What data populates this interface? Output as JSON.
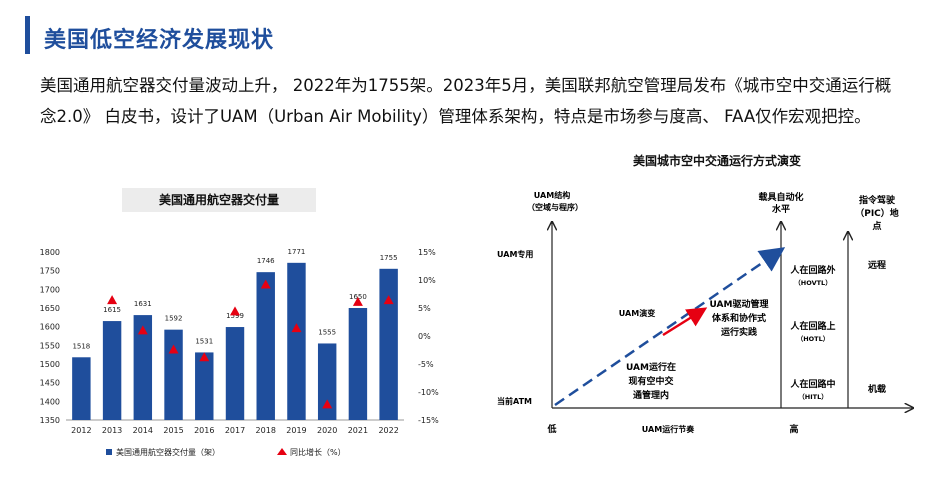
{
  "heading": {
    "title": "美国低空经济发展现状",
    "accent_color": "#1f4e9c"
  },
  "paragraph": "美国通用航空器交付量波动上升， 2022年为1755架。2023年5月，美国联邦航空管理局发布《城市空中交通运行概念2.0》 白皮书，设计了UAM（Urban Air Mobility）管理体系架构，特点是市场参与度高、 FAA仅作宏观把控。",
  "chart_data": [
    {
      "type": "bar",
      "title": "美国通用航空器交付量",
      "categories": [
        "2012",
        "2013",
        "2014",
        "2015",
        "2016",
        "2017",
        "2018",
        "2019",
        "2020",
        "2021",
        "2022"
      ],
      "series": [
        {
          "name": "美国通用航空器交付量（架）",
          "type": "bar",
          "axis": "left",
          "values": [
            1518,
            1615,
            1631,
            1592,
            1531,
            1599,
            1746,
            1771,
            1555,
            1650,
            1755
          ],
          "color": "#1f4e9c"
        },
        {
          "name": "同比增长（%）",
          "type": "marker",
          "axis": "right",
          "values": [
            null,
            6.4,
            1.0,
            -2.4,
            -3.8,
            4.4,
            9.2,
            1.4,
            -12.2,
            6.1,
            6.4
          ],
          "color": "#e60012"
        }
      ],
      "left_axis": {
        "ylim": [
          1350,
          1800
        ],
        "ticks": [
          "1350",
          "1400",
          "1450",
          "1500",
          "1550",
          "1600",
          "1650",
          "1700",
          "1750",
          "1800"
        ]
      },
      "right_axis": {
        "ylim": [
          -15,
          15
        ],
        "ticks": [
          "15%",
          "10%",
          "5%",
          "0%",
          "-5%",
          "-10%",
          "-15%"
        ]
      },
      "legend_position": "bottom"
    },
    {
      "type": "diagram",
      "title": "美国城市空中交通运行方式演变",
      "y_axis_label": [
        "UAM结构",
        "（空域与程序）"
      ],
      "y_levels": [
        "UAM专用",
        "当前ATM"
      ],
      "x_axis_label": "UAM运行节奏",
      "x_ends": [
        "低",
        "高"
      ],
      "auto_axis_label": [
        "载具自动化",
        "水平"
      ],
      "pic_axis_label": [
        "指令驾驶",
        "（PIC）地",
        "点"
      ],
      "start_box": [
        "UAM运行在",
        "现有空中交",
        "通管理内"
      ],
      "evolution_label": "UAM演变",
      "end_box": [
        "UAM驱动管理",
        "体系和协作式",
        "运行实践"
      ],
      "automation_levels": [
        {
          "label": "人在回路外",
          "abbr": "（HOVTL）"
        },
        {
          "label": "人在回路上",
          "abbr": "（HOTL）"
        },
        {
          "label": "人在回路中",
          "abbr": "（HITL）"
        }
      ],
      "pic_levels": [
        "远程",
        "机载"
      ],
      "line_color": "#1f4e9c",
      "arrow_color": "#e60012"
    }
  ]
}
